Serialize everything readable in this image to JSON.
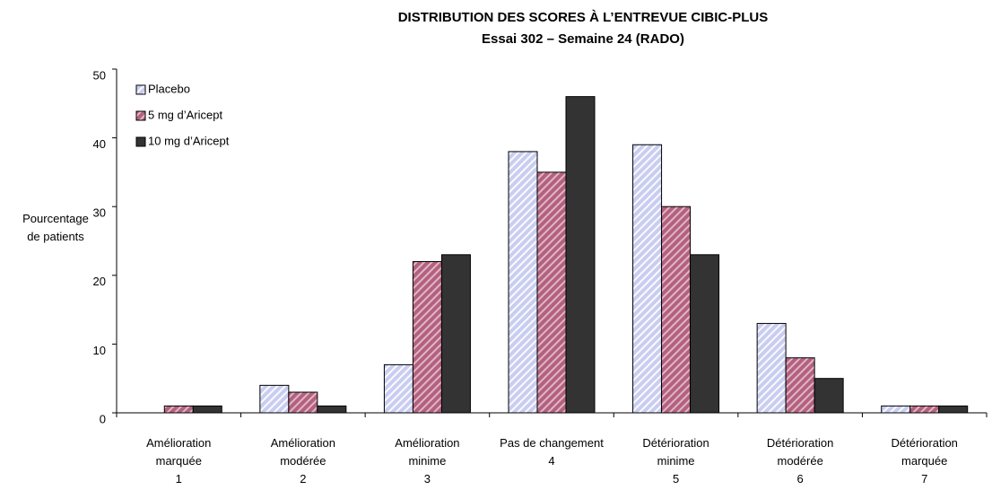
{
  "chart_data": {
    "type": "bar",
    "title": "DISTRIBUTION DES SCORES À L’ENTREVUE CIBIC-PLUS",
    "subtitle": "Essai 302 – Semaine 24 (RADO)",
    "y_label": "Pourcentage\nde patients",
    "categories": [
      "Amélioration\nmarquée\n1",
      "Amélioration\nmodérée\n2",
      "Amélioration\nminime\n3",
      "Pas de changement\n4",
      "Détérioration\nminime\n5",
      "Détérioration\nmodérée\n6",
      "Détérioration\nmarquée\n7"
    ],
    "series": [
      {
        "name": "Placebo",
        "color": "#c9cdf0",
        "values": [
          0,
          4,
          7,
          38,
          39,
          13,
          1
        ]
      },
      {
        "name": "5 mg d’Aricept",
        "color": "#b4607e",
        "values": [
          1,
          3,
          22,
          35,
          30,
          8,
          1
        ]
      },
      {
        "name": "10 mg d’Aricept",
        "color": "#333333",
        "values": [
          1,
          1,
          23,
          46,
          23,
          5,
          1
        ]
      }
    ],
    "ylim": [
      0,
      50
    ],
    "yticks": [
      0,
      10,
      20,
      30,
      40,
      50
    ],
    "grid": false,
    "legend": "top-left"
  }
}
